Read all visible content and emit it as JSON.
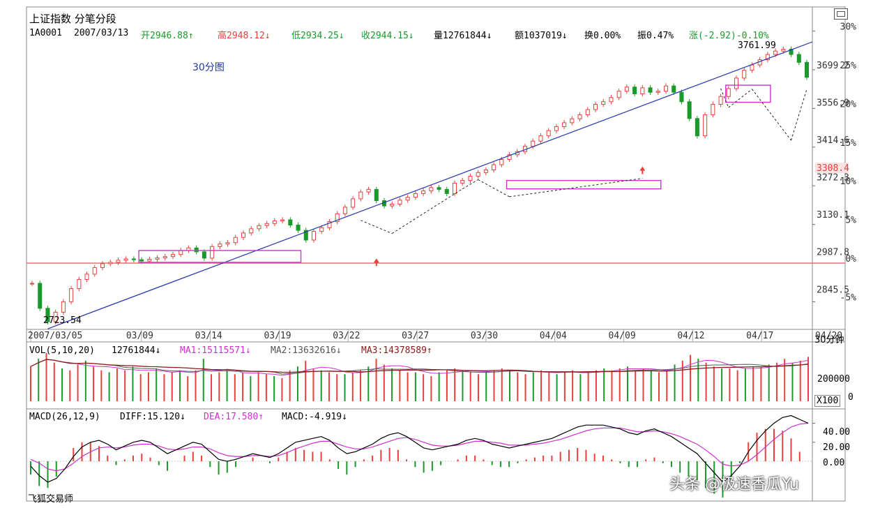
{
  "header": {
    "title": "上证指数 分笔分段",
    "code": "1A0001",
    "date": "2007/03/13",
    "open": "开2946.88↑",
    "high": "高2948.12↓",
    "low": "低2934.25↓",
    "close": "收2944.15↓",
    "volume": "量12761844↓",
    "amount": "额1037019↓",
    "turnover": "换0.00%",
    "amplitude": "振0.47%",
    "change": "涨(-2.92)-0.10%"
  },
  "annotations": {
    "period_label": "30分图",
    "peak_label": "3761.99",
    "low_label": "2723.54",
    "period_button": "30分钟"
  },
  "vol_panel": {
    "label": "VOL(5,10,20)",
    "value": "12761844↓",
    "ma1": "MA1:15115571↓",
    "ma2": "MA2:13632616↓",
    "ma3": "MA3:14378589↑",
    "axis_label": "200000",
    "axis_zero": "0",
    "unit": "X100"
  },
  "macd_panel": {
    "label": "MACD(26,12,9)",
    "diff": "DIFF:15.120↓",
    "dea": "DEA:17.580↑",
    "macd": "MACD:-4.919↓",
    "ticks": [
      "40.00",
      "20.00",
      "0.00"
    ]
  },
  "footer": {
    "brand": "飞狐交易师",
    "watermark": "头条 @极速香瓜Yu"
  },
  "colors": {
    "up": "#e8413c",
    "down": "#1a9a2a",
    "trend": "#2233aa",
    "box": "#cc33cc",
    "baseline": "#e06666",
    "ma1": "#cc33cc",
    "ma2": "#555555",
    "ma3": "#8b1a1a",
    "diff": "#000000",
    "dea": "#cc33cc"
  },
  "chart_data": [
    {
      "type": "line",
      "title": "上证指数 30分图",
      "x_tick_labels": [
        "2007/03/05",
        "03/09",
        "03/14",
        "03/19",
        "03/22",
        "03/27",
        "03/30",
        "04/04",
        "04/09",
        "04/12",
        "04/17",
        "04/20"
      ],
      "y_tick_labels": [
        "3699.2",
        "3556.9",
        "3414.6",
        "3308.4",
        "3272.3",
        "3130.1",
        "2987.8",
        "2845.5"
      ],
      "pct_tick_labels": [
        "30%",
        "25%",
        "20%",
        "15%",
        "10%",
        "5%",
        "0%",
        "-5%"
      ],
      "ylim": [
        2700,
        3790
      ],
      "baseline": 2947.07,
      "price_series": [
        2870,
        2775,
        2723.54,
        2760,
        2800,
        2850,
        2885,
        2905,
        2930,
        2945,
        2950,
        2958,
        2963,
        2960,
        2955,
        2962,
        2967,
        2972,
        2980,
        2995,
        3005,
        2990,
        2966,
        3010,
        3020,
        3025,
        3045,
        3062,
        3078,
        3090,
        3098,
        3108,
        3112,
        3092,
        3072,
        3035,
        3068,
        3082,
        3105,
        3135,
        3160,
        3192,
        3218,
        3228,
        3185,
        3165,
        3172,
        3187,
        3198,
        3212,
        3222,
        3235,
        3228,
        3212,
        3252,
        3262,
        3278,
        3292,
        3302,
        3322,
        3342,
        3360,
        3372,
        3392,
        3412,
        3432,
        3452,
        3467,
        3482,
        3497,
        3512,
        3532,
        3552,
        3562,
        3578,
        3602,
        3618,
        3592,
        3615,
        3598,
        3602,
        3622,
        3598,
        3562,
        3498,
        3432,
        3512,
        3552,
        3582,
        3612,
        3652,
        3682,
        3702,
        3722,
        3742,
        3755,
        3761.99,
        3742,
        3712,
        3655
      ]
    },
    {
      "type": "bar",
      "title": "VOL(5,10,20)",
      "volume_bars": [
        18,
        22,
        25,
        20,
        17,
        16,
        19,
        21,
        18,
        16,
        15,
        17,
        16,
        18,
        14,
        15,
        17,
        14,
        15,
        16,
        13,
        16,
        22,
        14,
        15,
        16,
        14,
        15,
        13,
        15,
        14,
        13,
        12,
        16,
        18,
        21,
        17,
        16,
        15,
        14,
        14,
        15,
        16,
        18,
        22,
        19,
        17,
        16,
        15,
        15,
        14,
        13,
        15,
        16,
        17,
        16,
        15,
        14,
        15,
        16,
        17,
        16,
        15,
        14,
        15,
        16,
        15,
        14,
        15,
        16,
        14,
        15,
        16,
        17,
        16,
        17,
        18,
        16,
        17,
        16,
        15,
        16,
        19,
        21,
        24,
        22,
        20,
        18,
        17,
        17,
        16,
        17,
        18,
        18,
        19,
        20,
        22,
        20,
        21,
        23
      ],
      "ma1": "15115571",
      "ma2": "13632616",
      "ma3": "14378589"
    },
    {
      "type": "line",
      "title": "MACD(26,12,9)",
      "ylim": [
        -30,
        55
      ],
      "diff_series": [
        -5,
        -15,
        -22,
        -18,
        -8,
        5,
        15,
        20,
        22,
        18,
        12,
        16,
        20,
        22,
        20,
        14,
        8,
        12,
        16,
        20,
        18,
        10,
        2,
        0,
        2,
        5,
        8,
        6,
        4,
        8,
        14,
        20,
        22,
        24,
        26,
        22,
        14,
        8,
        10,
        14,
        18,
        24,
        28,
        30,
        26,
        20,
        14,
        12,
        14,
        16,
        18,
        22,
        24,
        22,
        18,
        16,
        14,
        16,
        18,
        20,
        22,
        24,
        28,
        32,
        36,
        38,
        38,
        38,
        36,
        34,
        30,
        28,
        32,
        34,
        30,
        26,
        20,
        14,
        8,
        -2,
        -12,
        -22,
        -15,
        -5,
        10,
        22,
        32,
        40,
        46,
        48,
        44,
        40
      ],
      "dea_series": [
        2,
        -2,
        -8,
        -10,
        -8,
        -2,
        5,
        10,
        14,
        15,
        14,
        15,
        17,
        18,
        18,
        16,
        13,
        12,
        13,
        15,
        15,
        13,
        9,
        6,
        5,
        5,
        6,
        6,
        5,
        6,
        9,
        13,
        16,
        19,
        21,
        21,
        18,
        15,
        13,
        13,
        15,
        18,
        21,
        24,
        25,
        23,
        20,
        17,
        16,
        16,
        17,
        19,
        21,
        21,
        20,
        19,
        17,
        17,
        17,
        18,
        19,
        21,
        23,
        26,
        29,
        32,
        34,
        35,
        35,
        35,
        33,
        31,
        31,
        32,
        31,
        29,
        26,
        22,
        18,
        12,
        5,
        -3,
        -5,
        -4,
        0,
        7,
        15,
        23,
        30,
        36,
        39,
        40
      ],
      "diff_value": 15.12,
      "dea_value": 17.58,
      "macd_value": -4.919
    }
  ]
}
